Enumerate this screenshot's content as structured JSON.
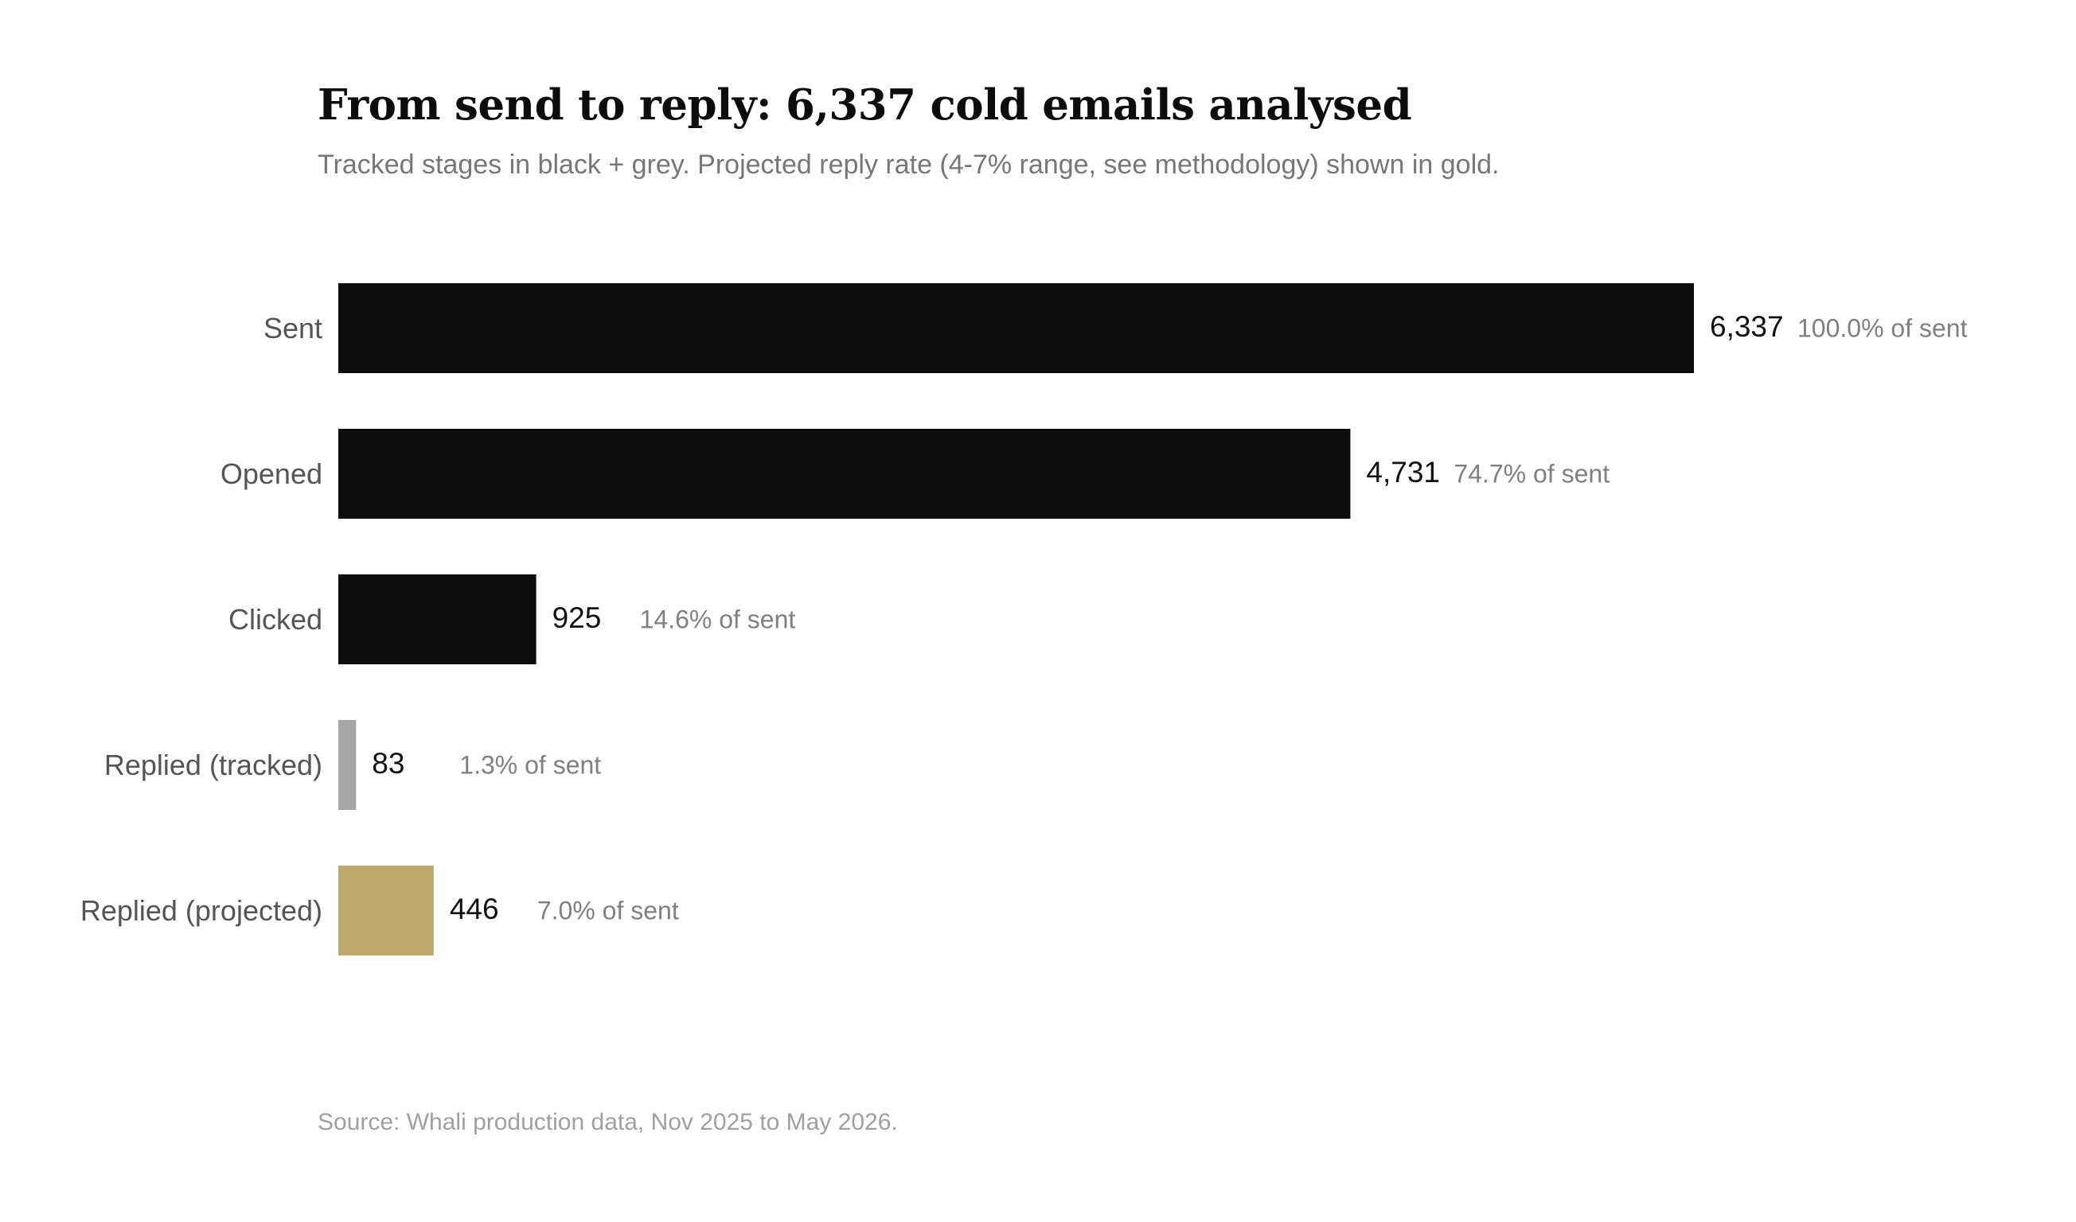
{
  "header": {
    "title": "From send to reply: 6,337 cold emails analysed",
    "subtitle": "Tracked stages in black + grey. Projected reply rate (4-7% range, see methodology) shown in gold."
  },
  "footer": {
    "source": "Source: Whali production data, Nov 2025 to May 2026."
  },
  "chart_data": {
    "type": "bar",
    "orientation": "horizontal",
    "title": "From send to reply: 6,337 cold emails analysed",
    "subtitle": "Tracked stages in black + grey. Projected reply rate (4-7% range, see methodology) shown in gold.",
    "categories": [
      "Sent",
      "Opened",
      "Clicked",
      "Replied (tracked)",
      "Replied (projected)"
    ],
    "values": [
      6337,
      4731,
      925,
      83,
      446
    ],
    "value_labels": [
      "6,337",
      "4,731",
      "925",
      "83",
      "446"
    ],
    "percent_labels": [
      "100.0% of sent",
      "74.7% of sent",
      "14.6% of sent",
      "1.3% of sent",
      "7.0% of sent"
    ],
    "bar_colors": [
      "#0c0c0c",
      "#0c0c0c",
      "#0c0c0c",
      "#a6a6a6",
      "#bfa96c"
    ],
    "xlim": [
      0,
      6337
    ],
    "grid": false,
    "legend": "none"
  }
}
